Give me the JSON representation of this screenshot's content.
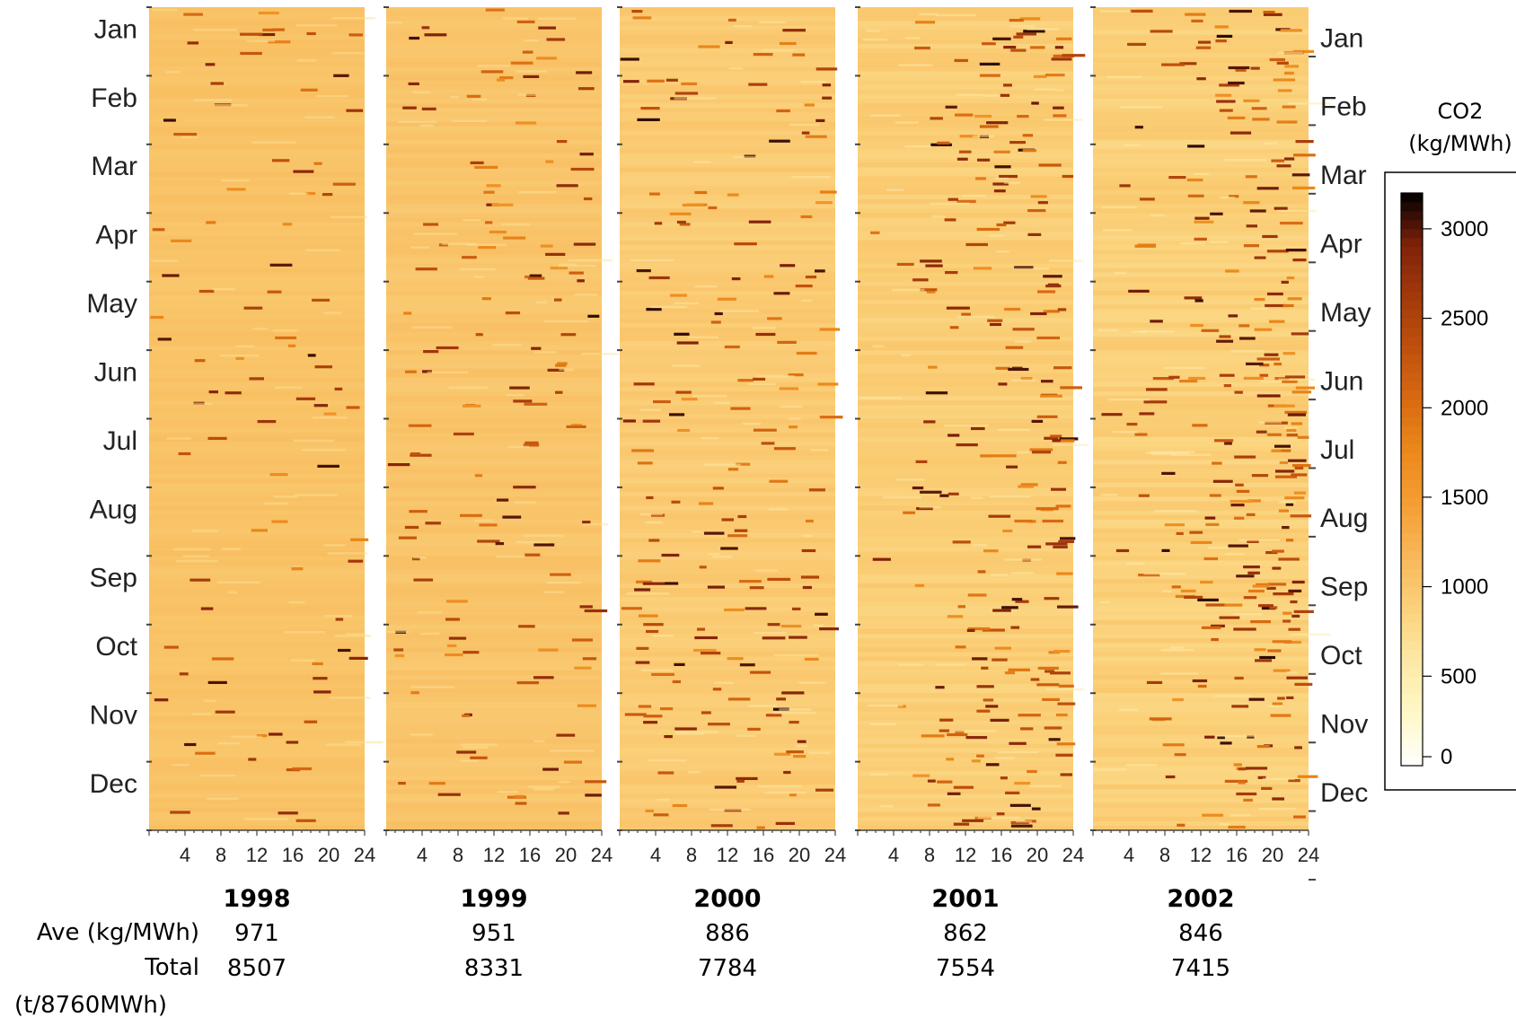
{
  "chart_data": {
    "type": "heatmap",
    "title": "",
    "xlabel": "",
    "ylabel": "",
    "x_ticks": [
      "4",
      "8",
      "12",
      "16",
      "20",
      "24"
    ],
    "x_range": [
      0,
      24
    ],
    "y_ticks": [
      "Jan",
      "Feb",
      "Mar",
      "Apr",
      "May",
      "Jun",
      "Jul",
      "Aug",
      "Sep",
      "Oct",
      "Nov",
      "Dec"
    ],
    "panels": [
      {
        "year": "1998",
        "ave": "971",
        "total": "8507",
        "base_level": 1050
      },
      {
        "year": "1999",
        "ave": "951",
        "total": "8331",
        "base_level": 1030
      },
      {
        "year": "2000",
        "ave": "886",
        "total": "7784",
        "base_level": 950
      },
      {
        "year": "2001",
        "ave": "862",
        "total": "7554",
        "base_level": 920
      },
      {
        "year": "2002",
        "ave": "846",
        "total": "7415",
        "base_level": 900
      }
    ],
    "row_labels": {
      "ave": "Ave (kg/MWh)",
      "total": "Total",
      "total_unit": "(t/8760MWh)"
    },
    "colorbar": {
      "title_line1": "CO2",
      "title_line2": "(kg/MWh)",
      "ticks": [
        "3000",
        "2500",
        "2000",
        "1500",
        "1000",
        "500",
        "0"
      ],
      "range": [
        0,
        3200
      ],
      "colors": [
        "#ffffff",
        "#fff8c8",
        "#fde9a6",
        "#fbd27c",
        "#f8b95a",
        "#f59e35",
        "#ec8a1c",
        "#d96b12",
        "#c0510d",
        "#a33a0b",
        "#80220a",
        "#000000"
      ]
    },
    "grid": false,
    "legend_position": "right"
  }
}
